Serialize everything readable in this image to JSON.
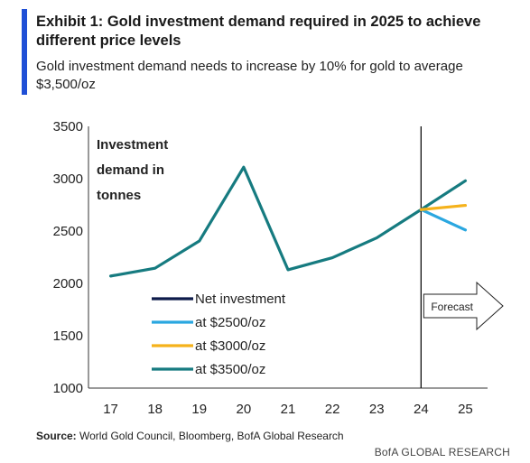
{
  "header": {
    "title": "Exhibit 1: Gold investment demand required in 2025 to achieve different price levels",
    "subtitle": "Gold investment demand needs to increase by 10% for gold to average $3,500/oz"
  },
  "footer": {
    "source_label": "Source:",
    "source_text": " World Gold Council, Bloomberg, BofA Global Research",
    "brand": "BofA GLOBAL RESEARCH"
  },
  "colors": {
    "accent": "#1f4fd6",
    "net_investment": "#0d1a4a",
    "at_2500": "#2aa7e0",
    "at_3000": "#f5b21b",
    "at_3500": "#167b80"
  },
  "chart_data": {
    "type": "line",
    "annotation": [
      "Investment",
      "demand in",
      "tonnes"
    ],
    "forecast_label": "Forecast",
    "forecast_start": 24,
    "x": [
      17,
      18,
      19,
      20,
      21,
      22,
      23,
      24,
      25
    ],
    "ylim": [
      1000,
      3500
    ],
    "yticks": [
      1000,
      1500,
      2000,
      2500,
      3000,
      3500
    ],
    "grid": false,
    "legend_position": "center-left",
    "series": [
      {
        "name": "Net investment",
        "color_key": "net_investment",
        "x": [],
        "values": []
      },
      {
        "name": "at $2500/oz",
        "color_key": "at_2500",
        "x": [
          24,
          25
        ],
        "values": [
          2705,
          2510
        ]
      },
      {
        "name": "at $3000/oz",
        "color_key": "at_3000",
        "x": [
          24,
          25
        ],
        "values": [
          2705,
          2745
        ]
      },
      {
        "name": "at $3500/oz",
        "color_key": "at_3500",
        "x": [
          17,
          18,
          19,
          20,
          21,
          22,
          23,
          24,
          25
        ],
        "values": [
          2070,
          2145,
          2405,
          3110,
          2130,
          2245,
          2435,
          2705,
          2980
        ]
      }
    ]
  }
}
